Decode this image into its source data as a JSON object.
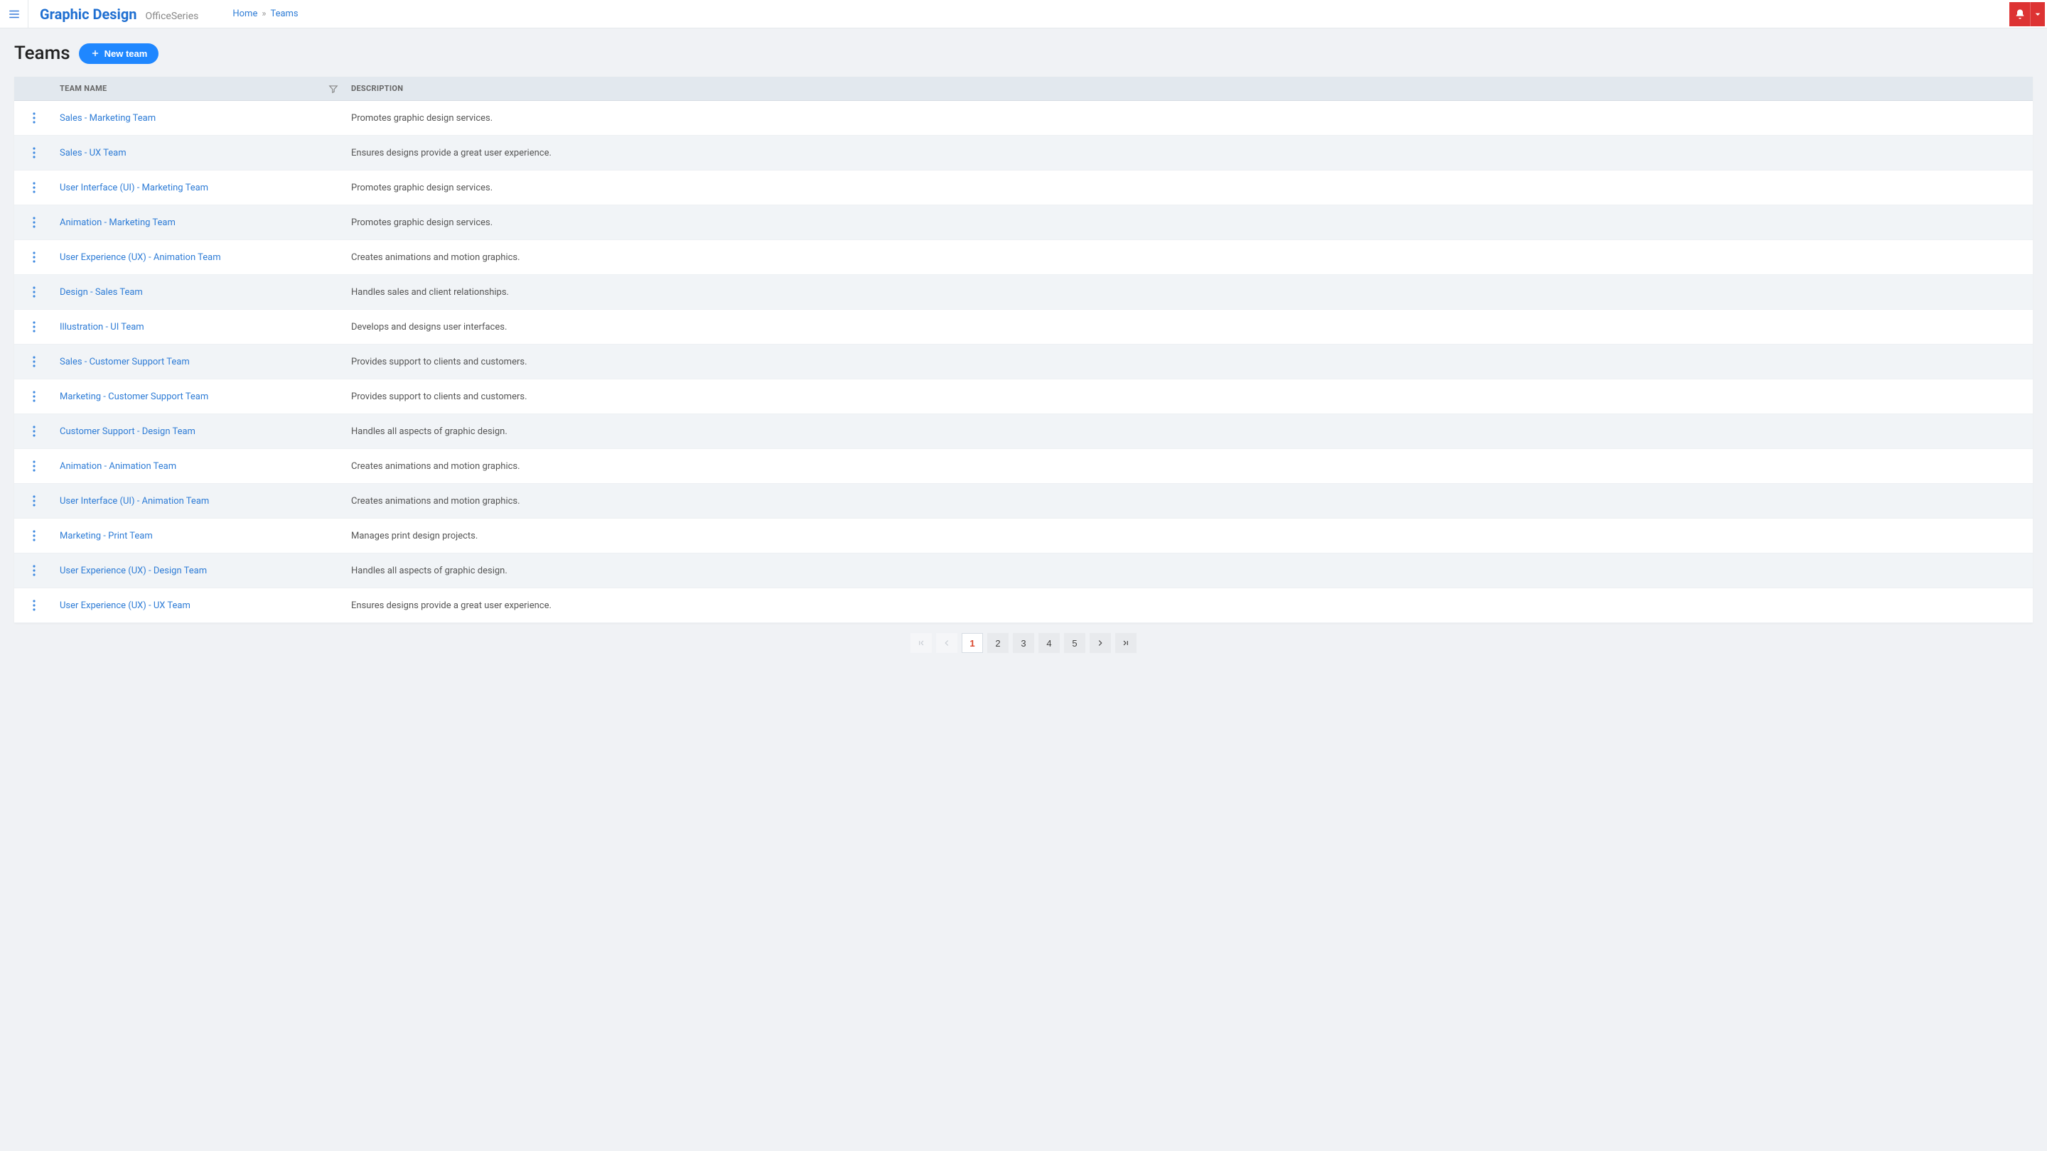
{
  "topbar": {
    "brand_title": "Graphic Design",
    "brand_sub": "OfficeSeries",
    "breadcrumb": {
      "home": "Home",
      "current": "Teams"
    }
  },
  "page": {
    "title": "Teams",
    "new_team_label": "New team"
  },
  "table": {
    "columns": {
      "name": "TEAM NAME",
      "description": "DESCRIPTION"
    },
    "rows": [
      {
        "name": "Sales - Marketing Team",
        "description": "Promotes graphic design services."
      },
      {
        "name": "Sales - UX Team",
        "description": "Ensures designs provide a great user experience."
      },
      {
        "name": "User Interface (UI) - Marketing Team",
        "description": "Promotes graphic design services."
      },
      {
        "name": "Animation - Marketing Team",
        "description": "Promotes graphic design services."
      },
      {
        "name": "User Experience (UX) - Animation Team",
        "description": "Creates animations and motion graphics."
      },
      {
        "name": "Design - Sales Team",
        "description": "Handles sales and client relationships."
      },
      {
        "name": "Illustration - UI Team",
        "description": "Develops and designs user interfaces."
      },
      {
        "name": "Sales - Customer Support Team",
        "description": "Provides support to clients and customers."
      },
      {
        "name": "Marketing - Customer Support Team",
        "description": "Provides support to clients and customers."
      },
      {
        "name": "Customer Support - Design Team",
        "description": "Handles all aspects of graphic design."
      },
      {
        "name": "Animation - Animation Team",
        "description": "Creates animations and motion graphics."
      },
      {
        "name": "User Interface (UI) - Animation Team",
        "description": "Creates animations and motion graphics."
      },
      {
        "name": "Marketing - Print Team",
        "description": "Manages print design projects."
      },
      {
        "name": "User Experience (UX) - Design Team",
        "description": "Handles all aspects of graphic design."
      },
      {
        "name": "User Experience (UX) - UX Team",
        "description": "Ensures designs provide a great user experience."
      }
    ]
  },
  "pagination": {
    "current": 1,
    "pages": [
      1,
      2,
      3,
      4,
      5
    ]
  },
  "colors": {
    "accent": "#1f87ff",
    "link": "#2e7cd6",
    "danger": "#d33",
    "header_bg": "#e2e8ee",
    "row_alt": "#f1f4f7",
    "page_bg": "#f0f2f5"
  }
}
